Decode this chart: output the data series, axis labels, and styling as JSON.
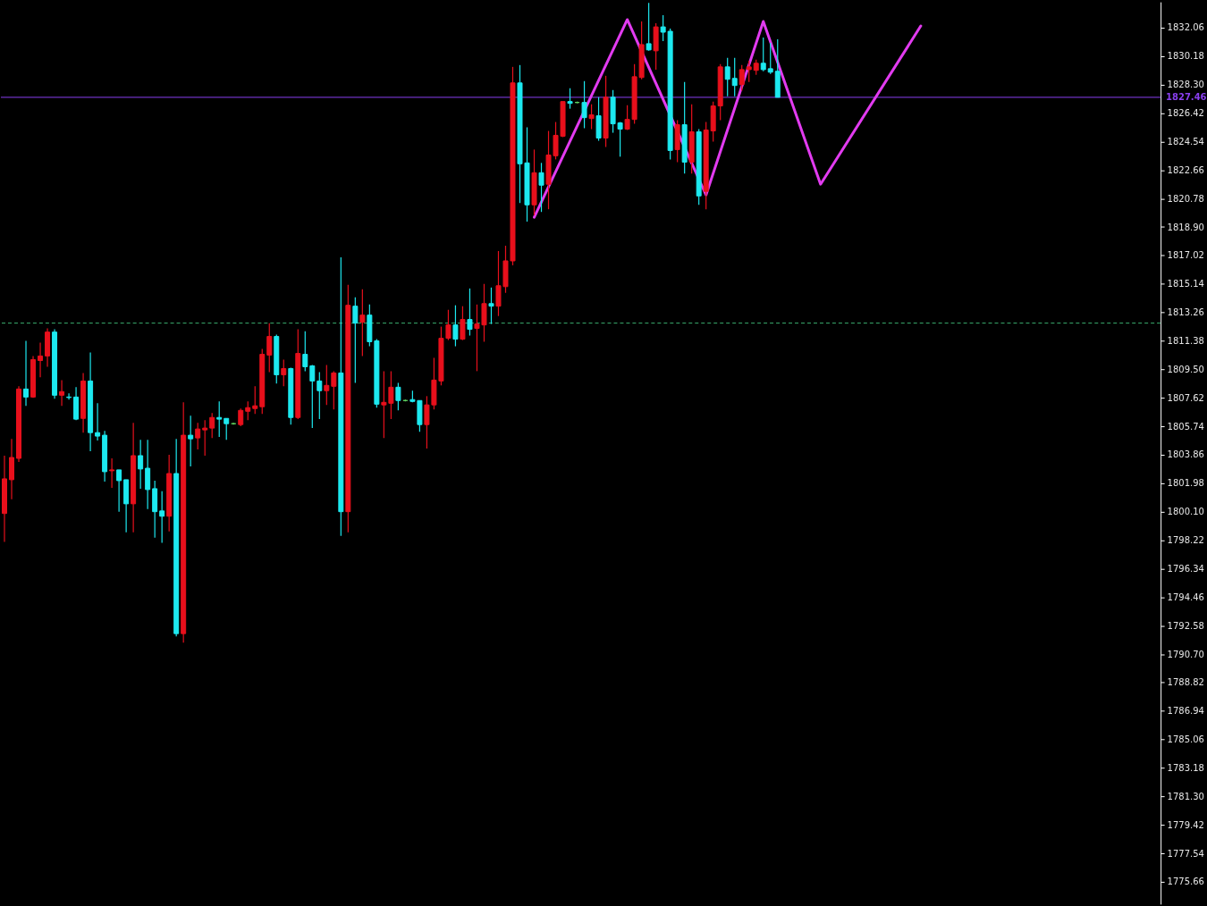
{
  "chart_data": {
    "type": "candlestick",
    "categories": [
      null,
      null,
      null,
      null,
      null,
      null,
      null,
      null,
      null,
      null,
      null,
      null,
      null,
      null,
      null,
      null,
      null,
      null,
      null,
      null,
      null,
      null,
      null,
      null,
      null,
      null,
      null,
      null,
      null,
      null,
      null,
      null,
      null,
      null,
      null,
      null,
      null,
      null,
      null,
      null,
      null,
      null,
      null,
      null,
      null,
      null,
      null,
      null,
      null,
      null,
      null,
      null,
      null,
      null,
      null,
      null,
      null,
      null,
      null,
      null,
      null,
      null,
      null,
      null,
      null,
      null,
      null,
      null,
      null,
      null,
      null,
      null,
      null,
      null,
      null,
      null,
      null,
      null,
      null,
      null,
      null,
      null,
      null,
      null,
      null,
      null,
      null,
      null,
      null,
      null,
      null,
      null,
      null,
      null,
      null,
      null,
      null,
      null,
      null,
      null,
      null,
      null,
      null,
      null,
      null,
      null,
      null,
      null,
      null,
      null,
      null,
      null,
      null,
      null,
      null,
      null,
      null,
      null,
      null,
      null,
      null,
      null,
      null,
      null,
      null,
      null,
      null,
      null,
      null,
      null,
      null,
      null,
      null,
      null,
      null,
      null,
      null,
      null,
      null,
      null,
      null,
      null,
      null,
      null,
      null,
      null,
      null,
      null,
      null,
      null,
      null,
      null,
      null,
      null,
      null,
      null,
      null,
      null,
      null,
      null,
      null,
      null
    ],
    "ohlc": [
      [
        1799.98,
        1803.8,
        1798.1,
        1802.27
      ],
      [
        1802.21,
        1804.91,
        1800.92,
        1803.68
      ],
      [
        1803.62,
        1808.38,
        1803.39,
        1808.2
      ],
      [
        1808.2,
        1811.38,
        1807.09,
        1807.67
      ],
      [
        1807.67,
        1810.38,
        1807.62,
        1810.14
      ],
      [
        1810.08,
        1811.26,
        1808.97,
        1810.38
      ],
      [
        1810.38,
        1812.2,
        1809.67,
        1811.96
      ],
      [
        1811.96,
        1812.14,
        1807.56,
        1807.79
      ],
      [
        1807.79,
        1808.79,
        1807.09,
        1808.03
      ],
      [
        1807.67,
        1807.91,
        1807.5,
        1807.64
      ],
      [
        1807.67,
        1808.32,
        1806.15,
        1806.21
      ],
      [
        1806.26,
        1809.26,
        1805.32,
        1808.73
      ],
      [
        1808.73,
        1810.61,
        1804.09,
        1805.32
      ],
      [
        1805.32,
        1807.26,
        1804.8,
        1805.09
      ],
      [
        1805.15,
        1805.44,
        1802.09,
        1802.74
      ],
      [
        1802.8,
        1803.62,
        1801.68,
        1802.86
      ],
      [
        1802.86,
        1802.86,
        1800.1,
        1802.15
      ],
      [
        1802.21,
        1802.21,
        1798.74,
        1800.62
      ],
      [
        1800.62,
        1805.97,
        1798.74,
        1803.8
      ],
      [
        1803.8,
        1804.85,
        1801.62,
        1802.92
      ],
      [
        1802.97,
        1804.85,
        1800.27,
        1801.56
      ],
      [
        1801.62,
        1802.15,
        1798.39,
        1800.1
      ],
      [
        1800.15,
        1801.45,
        1798.04,
        1799.8
      ],
      [
        1799.8,
        1803.86,
        1798.8,
        1802.62
      ],
      [
        1802.62,
        1804.91,
        1791.87,
        1792.05
      ],
      [
        1792.05,
        1807.32,
        1791.46,
        1805.15
      ],
      [
        1805.15,
        1806.44,
        1803.09,
        1804.91
      ],
      [
        1804.97,
        1805.97,
        1804.21,
        1805.56
      ],
      [
        1805.5,
        1806.15,
        1803.8,
        1805.62
      ],
      [
        1805.62,
        1806.62,
        1804.97,
        1806.32
      ],
      [
        1806.32,
        1807.38,
        1805.03,
        1806.21
      ],
      [
        1806.26,
        1806.26,
        1804.85,
        1805.91
      ],
      [
        1805.91,
        1805.97,
        1805.85,
        1805.91
      ],
      [
        1805.85,
        1806.91,
        1805.74,
        1806.79
      ],
      [
        1806.73,
        1807.38,
        1806.15,
        1806.97
      ],
      [
        1806.91,
        1808.38,
        1806.56,
        1807.09
      ],
      [
        1807.03,
        1810.85,
        1806.56,
        1810.49
      ],
      [
        1810.44,
        1812.55,
        1809.32,
        1811.67
      ],
      [
        1811.67,
        1811.79,
        1808.56,
        1809.14
      ],
      [
        1809.14,
        1810.14,
        1808.38,
        1809.55
      ],
      [
        1809.55,
        1809.61,
        1805.85,
        1806.32
      ],
      [
        1806.32,
        1812.14,
        1806.21,
        1810.55
      ],
      [
        1810.49,
        1812.02,
        1809.38,
        1809.67
      ],
      [
        1809.73,
        1809.79,
        1805.62,
        1808.73
      ],
      [
        1808.73,
        1809.32,
        1806.21,
        1808.09
      ],
      [
        1808.09,
        1809.79,
        1807.15,
        1808.44
      ],
      [
        1808.38,
        1809.38,
        1806.85,
        1809.26
      ],
      [
        1809.26,
        1816.9,
        1798.51,
        1800.1
      ],
      [
        1800.1,
        1815.08,
        1798.74,
        1813.73
      ],
      [
        1813.67,
        1814.25,
        1808.61,
        1812.55
      ],
      [
        1812.61,
        1814.78,
        1810.38,
        1813.08
      ],
      [
        1813.08,
        1813.78,
        1811.02,
        1811.32
      ],
      [
        1811.38,
        1811.49,
        1806.97,
        1807.2
      ],
      [
        1807.15,
        1809.38,
        1804.97,
        1807.32
      ],
      [
        1807.26,
        1809.38,
        1806.21,
        1808.32
      ],
      [
        1808.32,
        1808.61,
        1806.79,
        1807.44
      ],
      [
        1807.44,
        1807.5,
        1807.38,
        1807.44
      ],
      [
        1807.5,
        1808.09,
        1807.32,
        1807.38
      ],
      [
        1807.44,
        1807.44,
        1805.38,
        1805.85
      ],
      [
        1805.85,
        1807.73,
        1804.27,
        1807.15
      ],
      [
        1807.15,
        1810.26,
        1806.85,
        1808.79
      ],
      [
        1808.73,
        1812.32,
        1808.44,
        1811.55
      ],
      [
        1811.55,
        1813.43,
        1811.43,
        1812.43
      ],
      [
        1812.43,
        1813.73,
        1811.02,
        1811.49
      ],
      [
        1811.49,
        1813.67,
        1811.43,
        1812.79
      ],
      [
        1812.79,
        1814.84,
        1811.73,
        1812.14
      ],
      [
        1812.2,
        1813.78,
        1809.38,
        1812.49
      ],
      [
        1812.43,
        1815.14,
        1811.32,
        1813.84
      ],
      [
        1813.84,
        1814.9,
        1812.49,
        1813.67
      ],
      [
        1813.67,
        1817.31,
        1813.02,
        1815.02
      ],
      [
        1814.96,
        1817.66,
        1814.55,
        1816.66
      ],
      [
        1816.66,
        1829.47,
        1816.37,
        1828.41
      ],
      [
        1828.41,
        1829.59,
        1820.48,
        1823.07
      ],
      [
        1823.13,
        1825.48,
        1819.25,
        1820.36
      ],
      [
        1820.36,
        1824.01,
        1819.66,
        1822.48
      ],
      [
        1822.48,
        1823.13,
        1819.89,
        1821.66
      ],
      [
        1821.72,
        1825.24,
        1820.07,
        1823.65
      ],
      [
        1823.6,
        1825.83,
        1823.36,
        1824.95
      ],
      [
        1824.89,
        1827.18,
        1824.83,
        1827.18
      ],
      [
        1827.18,
        1828.06,
        1826.71,
        1827.06
      ],
      [
        1827.12,
        1827.18,
        1827.06,
        1827.12
      ],
      [
        1827.12,
        1828.53,
        1825.42,
        1826.12
      ],
      [
        1826.06,
        1827.0,
        1825.36,
        1826.3
      ],
      [
        1826.24,
        1827.47,
        1824.59,
        1824.77
      ],
      [
        1824.77,
        1828.88,
        1824.18,
        1827.47
      ],
      [
        1827.47,
        1827.94,
        1825.12,
        1825.71
      ],
      [
        1825.77,
        1825.83,
        1823.54,
        1825.36
      ],
      [
        1825.36,
        1826.94,
        1825.3,
        1826.0
      ],
      [
        1826.0,
        1829.65,
        1825.71,
        1828.82
      ],
      [
        1828.77,
        1832.47,
        1828.65,
        1830.94
      ],
      [
        1831.0,
        1833.7,
        1830.53,
        1830.59
      ],
      [
        1830.53,
        1832.35,
        1829.29,
        1832.11
      ],
      [
        1832.11,
        1832.88,
        1831.17,
        1831.76
      ],
      [
        1831.82,
        1832.0,
        1823.36,
        1823.95
      ],
      [
        1824.01,
        1825.95,
        1823.18,
        1825.65
      ],
      [
        1825.65,
        1828.47,
        1822.42,
        1823.18
      ],
      [
        1823.18,
        1827.0,
        1822.42,
        1825.18
      ],
      [
        1825.18,
        1825.36,
        1820.36,
        1820.95
      ],
      [
        1821.25,
        1825.83,
        1820.07,
        1825.3
      ],
      [
        1825.24,
        1827.18,
        1824.54,
        1826.89
      ],
      [
        1826.89,
        1829.65,
        1825.95,
        1829.47
      ],
      [
        1829.47,
        1830.06,
        1827.53,
        1828.65
      ],
      [
        1828.71,
        1830.06,
        1827.53,
        1828.24
      ],
      [
        1828.3,
        1829.59,
        1827.89,
        1829.29
      ],
      [
        1829.29,
        1829.88,
        1828.47,
        1829.47
      ],
      [
        1829.24,
        1829.94,
        1828.94,
        1829.71
      ],
      [
        1829.71,
        1831.41,
        1829.18,
        1829.29
      ],
      [
        1829.35,
        1831.06,
        1829.0,
        1829.12
      ],
      [
        1829.18,
        1831.29,
        1827.46,
        1827.46
      ],
      null,
      null,
      null,
      null,
      null,
      null,
      null,
      null,
      null,
      null,
      null,
      null,
      null,
      null,
      null,
      null,
      null,
      null,
      null,
      null,
      null,
      null,
      null,
      null,
      null,
      null,
      null,
      null,
      null,
      null,
      null,
      null,
      null,
      null,
      null,
      null,
      null,
      null,
      null,
      null,
      null,
      null,
      null,
      null,
      null,
      null,
      null,
      null,
      null,
      null,
      null,
      null,
      null
    ],
    "colors": [
      "#e8101c",
      "#e8101c",
      "#e8101c",
      "#1de9f0",
      "#e8101c",
      "#e8101c",
      "#e8101c",
      "#1de9f0",
      "#e8101c",
      "#1de9f0",
      "#1de9f0",
      "#e8101c",
      "#1de9f0",
      "#1de9f0",
      "#1de9f0",
      "#e8101c",
      "#1de9f0",
      "#1de9f0",
      "#e8101c",
      "#1de9f0",
      "#1de9f0",
      "#1de9f0",
      "#1de9f0",
      "#e8101c",
      "#1de9f0",
      "#e8101c",
      "#1de9f0",
      "#e8101c",
      "#e8101c",
      "#e8101c",
      "#1de9f0",
      "#1de9f0",
      "#5fd35f",
      "#e8101c",
      "#e8101c",
      "#e8101c",
      "#e8101c",
      "#e8101c",
      "#1de9f0",
      "#e8101c",
      "#1de9f0",
      "#e8101c",
      "#1de9f0",
      "#1de9f0",
      "#1de9f0",
      "#e8101c",
      "#e8101c",
      "#1de9f0",
      "#e8101c",
      "#1de9f0",
      "#e8101c",
      "#1de9f0",
      "#1de9f0",
      "#e8101c",
      "#e8101c",
      "#1de9f0",
      "#5fd35f",
      "#1de9f0",
      "#1de9f0",
      "#e8101c",
      "#e8101c",
      "#e8101c",
      "#e8101c",
      "#1de9f0",
      "#e8101c",
      "#1de9f0",
      "#e8101c",
      "#e8101c",
      "#1de9f0",
      "#e8101c",
      "#e8101c",
      "#e8101c",
      "#1de9f0",
      "#1de9f0",
      "#e8101c",
      "#1de9f0",
      "#e8101c",
      "#e8101c",
      "#e8101c",
      "#1de9f0",
      "#5fd35f",
      "#1de9f0",
      "#e8101c",
      "#1de9f0",
      "#e8101c",
      "#1de9f0",
      "#1de9f0",
      "#e8101c",
      "#e8101c",
      "#e8101c",
      "#1de9f0",
      "#e8101c",
      "#1de9f0",
      "#1de9f0",
      "#e8101c",
      "#1de9f0",
      "#e8101c",
      "#1de9f0",
      "#e8101c",
      "#e8101c",
      "#e8101c",
      "#1de9f0",
      "#1de9f0",
      "#e8101c",
      "#e8101c",
      "#e8101c",
      "#1de9f0",
      "#1de9f0",
      "#1de9f0",
      null,
      null,
      null,
      null,
      null,
      null,
      null,
      null,
      null,
      null,
      null,
      null,
      null,
      null,
      null,
      null,
      null,
      null,
      null,
      null,
      null,
      null,
      null,
      null,
      null,
      null,
      null,
      null,
      null,
      null,
      null,
      null,
      null,
      null,
      null,
      null,
      null,
      null,
      null,
      null,
      null,
      null,
      null,
      null,
      null,
      null,
      null,
      null,
      null,
      null,
      null,
      null,
      null
    ],
    "series": [
      {
        "type": "line",
        "color": "#e23bf0",
        "values": [
          null,
          null,
          null,
          null,
          null,
          null,
          null,
          null,
          null,
          null,
          null,
          null,
          null,
          null,
          null,
          null,
          null,
          null,
          null,
          null,
          null,
          null,
          null,
          null,
          null,
          null,
          null,
          null,
          null,
          null,
          null,
          null,
          null,
          null,
          null,
          null,
          null,
          null,
          null,
          null,
          null,
          null,
          null,
          null,
          null,
          null,
          null,
          null,
          null,
          null,
          null,
          null,
          null,
          null,
          null,
          null,
          null,
          null,
          null,
          null,
          null,
          null,
          null,
          null,
          null,
          null,
          null,
          null,
          null,
          null,
          null,
          null,
          null,
          null,
          1819.54,
          null,
          null,
          null,
          null,
          null,
          null,
          null,
          null,
          null,
          null,
          null,
          null,
          1832.59,
          null,
          null,
          null,
          null,
          null,
          null,
          null,
          null,
          null,
          null,
          1821.01,
          null,
          null,
          null,
          null,
          null,
          null,
          null,
          1832.47,
          null,
          null,
          null,
          null,
          null,
          null,
          null,
          1821.72,
          null,
          null,
          null,
          null,
          null,
          null,
          null,
          null,
          null,
          null,
          null,
          null,
          null,
          1832.17,
          null,
          null,
          null,
          null,
          null,
          null,
          null,
          null,
          null,
          null,
          null,
          null,
          null,
          null,
          null,
          null,
          null,
          null,
          null,
          null,
          null,
          null,
          null,
          null,
          null,
          null,
          null,
          null,
          null,
          null,
          null,
          null,
          null
        ]
      }
    ],
    "ref_lines": [
      {
        "axis": "y",
        "value": 1827.46,
        "label": "1827.46",
        "color": "#8a3ff0",
        "line_style": "solid"
      },
      {
        "axis": "y",
        "value": 1812.55,
        "color": "#3cb371",
        "line_style": "dashed"
      }
    ],
    "ylim": [
      1774.19,
      1833.76
    ],
    "yticks": [
      1775.66,
      1777.54,
      1779.42,
      {
        "value": 1781.3,
        "label": "1781.30"
      },
      1783.18,
      1785.06,
      1786.94,
      1788.82,
      {
        "value": 1790.7,
        "label": "1790.70"
      },
      1792.58,
      1794.46,
      1796.34,
      1798.22,
      {
        "value": 1800.1,
        "label": "1800.10"
      },
      1801.98,
      1803.86,
      1805.74,
      1807.62,
      {
        "value": 1809.5,
        "label": "1809.50"
      },
      1811.38,
      1813.26,
      1815.14,
      1817.02,
      {
        "value": 1818.9,
        "label": "1818.90"
      },
      1820.78,
      1822.66,
      1824.54,
      1826.42,
      {
        "value": 1828.3,
        "label": "1828.30"
      },
      1830.18,
      1832.06
    ],
    "tick_labels": "y",
    "grid": false
  }
}
